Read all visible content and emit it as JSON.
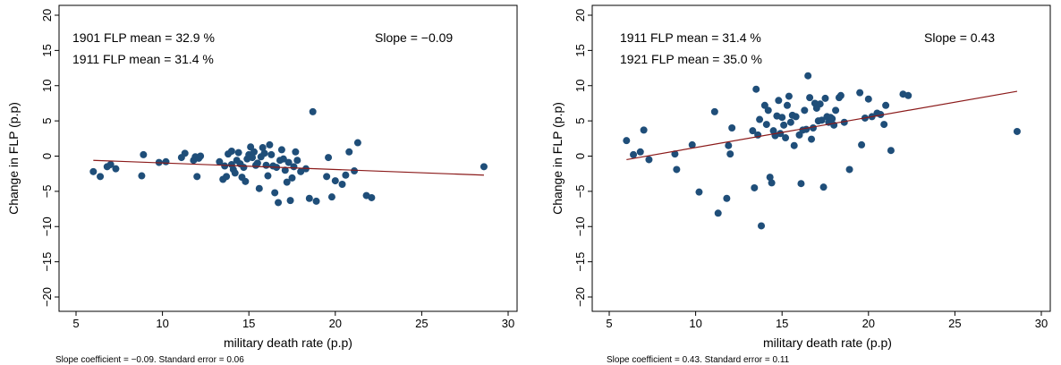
{
  "style": {
    "point_color": "#1f4e79",
    "line_color": "#8b1a1a"
  },
  "chart_data": [
    {
      "type": "scatter",
      "xlabel": "military death rate (p.p)",
      "ylabel": "Change in FLP (p.p)",
      "xlim": [
        5,
        30
      ],
      "ylim": [
        -20,
        20
      ],
      "x_ticks": [
        5,
        10,
        15,
        20,
        25,
        30
      ],
      "y_ticks": [
        -20,
        -15,
        -10,
        -5,
        0,
        5,
        10,
        15,
        20
      ],
      "y_tick_labels": [
        "−20",
        "−15",
        "−10",
        "−5",
        "0",
        "5",
        "10",
        "15",
        "20"
      ],
      "annotations": {
        "mean_first": "1901 FLP mean = 32.9 %",
        "mean_second": "1911 FLP mean = 31.4 %",
        "slope": "Slope = −0.09"
      },
      "note": "Slope coefficient = −0.09. Standard error = 0.06",
      "fit_line": {
        "x": [
          6,
          28.6
        ],
        "y": [
          -0.6,
          -2.7
        ]
      },
      "points": [
        [
          6.0,
          -2.2
        ],
        [
          6.4,
          -2.9
        ],
        [
          6.8,
          -1.5
        ],
        [
          7.0,
          -1.2
        ],
        [
          7.3,
          -1.8
        ],
        [
          8.8,
          -2.8
        ],
        [
          8.9,
          0.2
        ],
        [
          9.8,
          -0.9
        ],
        [
          10.2,
          -0.8
        ],
        [
          11.1,
          -0.2
        ],
        [
          11.3,
          0.4
        ],
        [
          11.8,
          -0.6
        ],
        [
          11.9,
          -0.1
        ],
        [
          12.0,
          -2.9
        ],
        [
          12.1,
          -0.3
        ],
        [
          12.2,
          0.0
        ],
        [
          13.3,
          -0.8
        ],
        [
          13.5,
          -3.3
        ],
        [
          13.6,
          -1.4
        ],
        [
          13.7,
          -2.9
        ],
        [
          13.8,
          0.3
        ],
        [
          14.0,
          -1.2
        ],
        [
          14.0,
          0.7
        ],
        [
          14.1,
          -1.9
        ],
        [
          14.2,
          -2.4
        ],
        [
          14.3,
          -0.6
        ],
        [
          14.4,
          0.5
        ],
        [
          14.5,
          -1.1
        ],
        [
          14.6,
          -3.0
        ],
        [
          14.7,
          -1.6
        ],
        [
          14.8,
          -3.6
        ],
        [
          14.9,
          -0.4
        ],
        [
          15.0,
          0.2
        ],
        [
          15.1,
          1.3
        ],
        [
          15.2,
          -0.2
        ],
        [
          15.3,
          0.6
        ],
        [
          15.4,
          -1.3
        ],
        [
          15.5,
          -1.0
        ],
        [
          15.6,
          -4.6
        ],
        [
          15.7,
          -0.1
        ],
        [
          15.8,
          1.2
        ],
        [
          15.9,
          0.4
        ],
        [
          16.0,
          -1.3
        ],
        [
          16.1,
          -2.8
        ],
        [
          16.2,
          1.6
        ],
        [
          16.3,
          0.2
        ],
        [
          16.4,
          -1.4
        ],
        [
          16.5,
          -5.2
        ],
        [
          16.6,
          -1.6
        ],
        [
          16.7,
          -6.6
        ],
        [
          16.8,
          -0.6
        ],
        [
          16.9,
          0.9
        ],
        [
          17.0,
          -0.4
        ],
        [
          17.1,
          -2.0
        ],
        [
          17.2,
          -3.7
        ],
        [
          17.3,
          -0.9
        ],
        [
          17.4,
          -6.3
        ],
        [
          17.5,
          -3.1
        ],
        [
          17.6,
          -1.5
        ],
        [
          17.7,
          0.6
        ],
        [
          17.8,
          -0.6
        ],
        [
          18.0,
          -2.2
        ],
        [
          18.3,
          -1.8
        ],
        [
          18.5,
          -6.0
        ],
        [
          18.7,
          6.3
        ],
        [
          18.9,
          -6.4
        ],
        [
          19.5,
          -2.9
        ],
        [
          19.6,
          -0.2
        ],
        [
          19.8,
          -5.8
        ],
        [
          20.0,
          -3.5
        ],
        [
          20.4,
          -4.0
        ],
        [
          20.6,
          -2.7
        ],
        [
          20.8,
          0.6
        ],
        [
          21.1,
          -2.1
        ],
        [
          21.3,
          1.9
        ],
        [
          21.8,
          -5.6
        ],
        [
          22.1,
          -5.9
        ],
        [
          28.6,
          -1.5
        ]
      ]
    },
    {
      "type": "scatter",
      "xlabel": "military death rate (p.p)",
      "ylabel": "Change in FLP (p.p)",
      "xlim": [
        5,
        30
      ],
      "ylim": [
        -20,
        20
      ],
      "x_ticks": [
        5,
        10,
        15,
        20,
        25,
        30
      ],
      "y_ticks": [
        -20,
        -15,
        -10,
        -5,
        0,
        5,
        10,
        15,
        20
      ],
      "y_tick_labels": [
        "−20",
        "−15",
        "−10",
        "−5",
        "0",
        "5",
        "10",
        "15",
        "20"
      ],
      "annotations": {
        "mean_first": "1911 FLP mean = 31.4 %",
        "mean_second": "1921 FLP mean = 35.0 %",
        "slope": "Slope = 0.43"
      },
      "note": "Slope coefficient = 0.43. Standard error = 0.11",
      "fit_line": {
        "x": [
          6,
          28.6
        ],
        "y": [
          -0.5,
          9.2
        ]
      },
      "points": [
        [
          6.0,
          2.2
        ],
        [
          6.4,
          0.2
        ],
        [
          6.8,
          0.6
        ],
        [
          7.0,
          3.7
        ],
        [
          7.3,
          -0.5
        ],
        [
          8.8,
          0.3
        ],
        [
          8.9,
          -1.9
        ],
        [
          9.8,
          1.6
        ],
        [
          10.2,
          -5.1
        ],
        [
          11.1,
          6.3
        ],
        [
          11.3,
          -8.1
        ],
        [
          11.8,
          -6.0
        ],
        [
          11.9,
          1.5
        ],
        [
          12.0,
          0.3
        ],
        [
          12.1,
          4.0
        ],
        [
          13.3,
          3.6
        ],
        [
          13.4,
          -4.5
        ],
        [
          13.5,
          9.5
        ],
        [
          13.6,
          3.0
        ],
        [
          13.7,
          5.2
        ],
        [
          13.8,
          -9.9
        ],
        [
          14.0,
          7.2
        ],
        [
          14.1,
          4.5
        ],
        [
          14.2,
          6.5
        ],
        [
          14.3,
          -3.0
        ],
        [
          14.4,
          -3.8
        ],
        [
          14.5,
          3.6
        ],
        [
          14.6,
          2.9
        ],
        [
          14.7,
          5.7
        ],
        [
          14.8,
          7.9
        ],
        [
          14.9,
          3.2
        ],
        [
          15.0,
          5.5
        ],
        [
          15.1,
          4.4
        ],
        [
          15.2,
          2.6
        ],
        [
          15.3,
          7.2
        ],
        [
          15.4,
          8.5
        ],
        [
          15.5,
          4.8
        ],
        [
          15.6,
          5.8
        ],
        [
          15.7,
          1.5
        ],
        [
          15.8,
          5.6
        ],
        [
          16.0,
          3.0
        ],
        [
          16.1,
          -3.9
        ],
        [
          16.2,
          3.7
        ],
        [
          16.3,
          6.5
        ],
        [
          16.4,
          3.8
        ],
        [
          16.5,
          11.4
        ],
        [
          16.6,
          8.3
        ],
        [
          16.7,
          2.4
        ],
        [
          16.8,
          4.0
        ],
        [
          16.9,
          7.5
        ],
        [
          17.0,
          6.8
        ],
        [
          17.1,
          5.0
        ],
        [
          17.2,
          7.4
        ],
        [
          17.3,
          5.1
        ],
        [
          17.4,
          -4.4
        ],
        [
          17.5,
          8.2
        ],
        [
          17.6,
          5.6
        ],
        [
          17.7,
          4.8
        ],
        [
          17.8,
          5.5
        ],
        [
          17.9,
          5.3
        ],
        [
          18.0,
          4.4
        ],
        [
          18.1,
          6.5
        ],
        [
          18.3,
          8.3
        ],
        [
          18.4,
          8.6
        ],
        [
          18.6,
          4.8
        ],
        [
          18.9,
          -1.9
        ],
        [
          19.5,
          9.0
        ],
        [
          19.6,
          1.6
        ],
        [
          19.8,
          5.4
        ],
        [
          20.0,
          8.1
        ],
        [
          20.2,
          5.6
        ],
        [
          20.5,
          6.1
        ],
        [
          20.7,
          5.9
        ],
        [
          20.9,
          4.5
        ],
        [
          21.0,
          7.2
        ],
        [
          21.3,
          0.8
        ],
        [
          22.0,
          8.8
        ],
        [
          22.3,
          8.6
        ],
        [
          28.6,
          3.5
        ]
      ]
    }
  ]
}
